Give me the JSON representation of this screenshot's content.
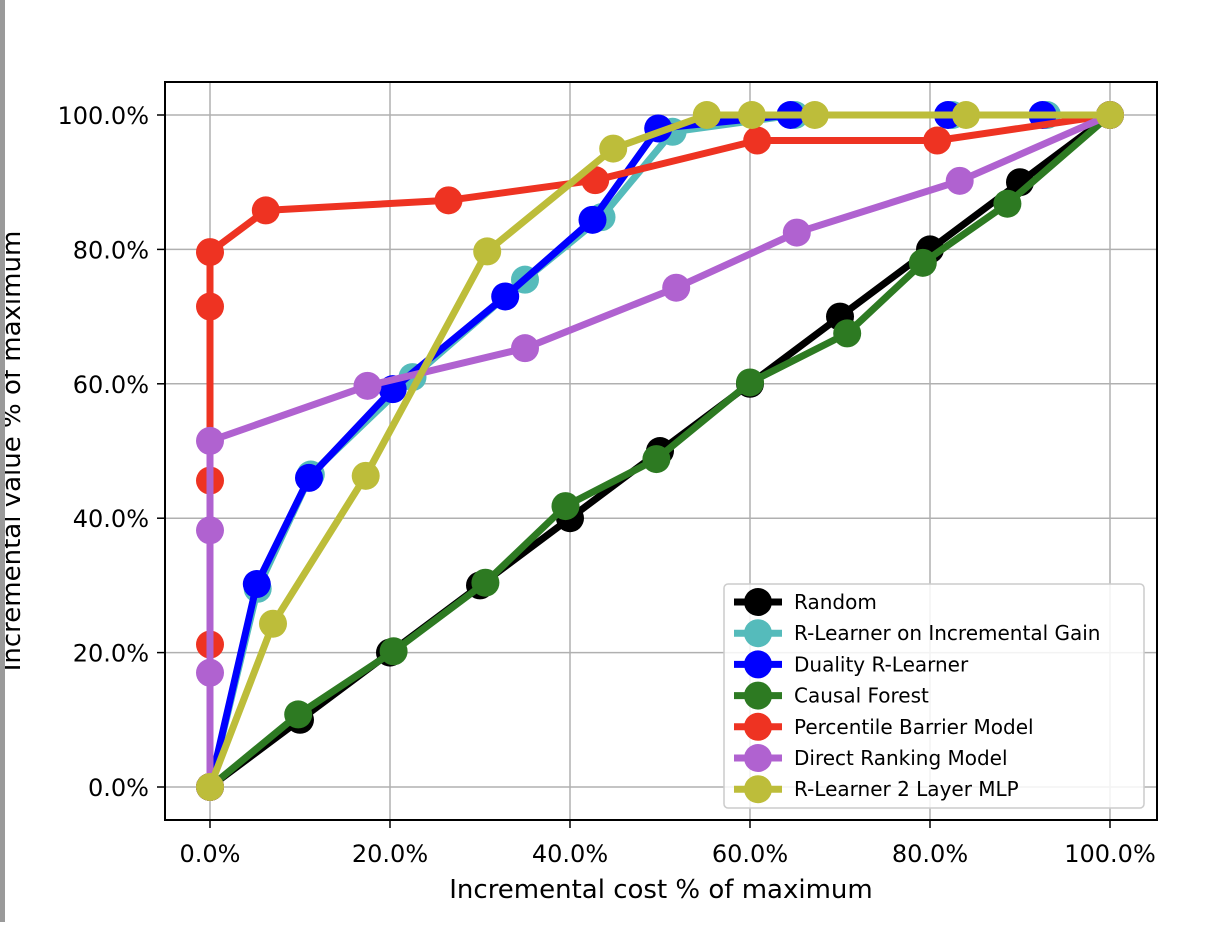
{
  "chart_data": {
    "type": "line",
    "title": "",
    "xlabel": "Incremental cost % of maximum",
    "ylabel": "Incremental value % of maximum",
    "xlim": [
      -5,
      105
    ],
    "ylim": [
      -5,
      105
    ],
    "xticks": [
      0,
      20,
      40,
      60,
      80,
      100
    ],
    "yticks": [
      0,
      20,
      40,
      60,
      80,
      100
    ],
    "xtick_labels": [
      "0.0%",
      "20.0%",
      "40.0%",
      "60.0%",
      "80.0%",
      "100.0%"
    ],
    "ytick_labels": [
      "0.0%",
      "20.0%",
      "40.0%",
      "60.0%",
      "80.0%",
      "100.0%"
    ],
    "grid": true,
    "legend_position": "lower-right",
    "series": [
      {
        "name": "Random",
        "color": "#000000",
        "x": [
          0,
          10,
          20,
          30,
          40,
          50,
          60,
          70,
          80,
          90,
          100
        ],
        "y": [
          0,
          10,
          20,
          30,
          40,
          50,
          60,
          70,
          80,
          90,
          100
        ]
      },
      {
        "name": "R-Learner on Incremental Gain",
        "color": "#55bbbb",
        "x": [
          0,
          5.3,
          11.2,
          22.5,
          35,
          43.5,
          51.4,
          65,
          82.5,
          93,
          100
        ],
        "y": [
          0,
          29.5,
          46.5,
          61,
          75.5,
          84.8,
          97.5,
          100,
          100,
          100,
          100
        ]
      },
      {
        "name": "Duality R-Learner",
        "color": "#0000ff",
        "x": [
          0,
          5.2,
          11,
          20.3,
          32.8,
          42.5,
          49.8,
          64.5,
          82,
          92.5,
          100
        ],
        "y": [
          0,
          30.2,
          46,
          59.2,
          73,
          84.4,
          98,
          100,
          100,
          100,
          100
        ]
      },
      {
        "name": "Causal Forest",
        "color": "#2d7a22",
        "x": [
          0,
          9.8,
          20.4,
          30.6,
          39.5,
          49.6,
          60,
          70.8,
          79.2,
          88.6,
          100
        ],
        "y": [
          0,
          10.8,
          20.2,
          30.4,
          41.8,
          48.8,
          60.2,
          67.5,
          78,
          86.8,
          100
        ]
      },
      {
        "name": "Percentile Barrier Model",
        "color": "#ee3322",
        "x": [
          0,
          0,
          0,
          0,
          0,
          6.2,
          26.5,
          42.8,
          60.8,
          80.8,
          100
        ],
        "y": [
          0,
          21.2,
          45.6,
          71.5,
          79.6,
          85.8,
          87.3,
          90.3,
          96.2,
          96.2,
          100
        ]
      },
      {
        "name": "Direct Ranking Model",
        "color": "#b062d0",
        "x": [
          0,
          0,
          0,
          0,
          17.5,
          35,
          51.8,
          65.2,
          83.3,
          100
        ],
        "y": [
          0,
          17,
          38.2,
          51.5,
          59.7,
          65.3,
          74.3,
          82.5,
          90.2,
          100
        ]
      },
      {
        "name": "R-Learner 2 Layer MLP",
        "color": "#bdbd3a",
        "x": [
          0,
          7,
          17.3,
          30.8,
          44.8,
          55.2,
          60.2,
          67.2,
          84,
          100
        ],
        "y": [
          0,
          24.3,
          46.3,
          79.7,
          95,
          100,
          100,
          100,
          100,
          100
        ]
      }
    ]
  }
}
